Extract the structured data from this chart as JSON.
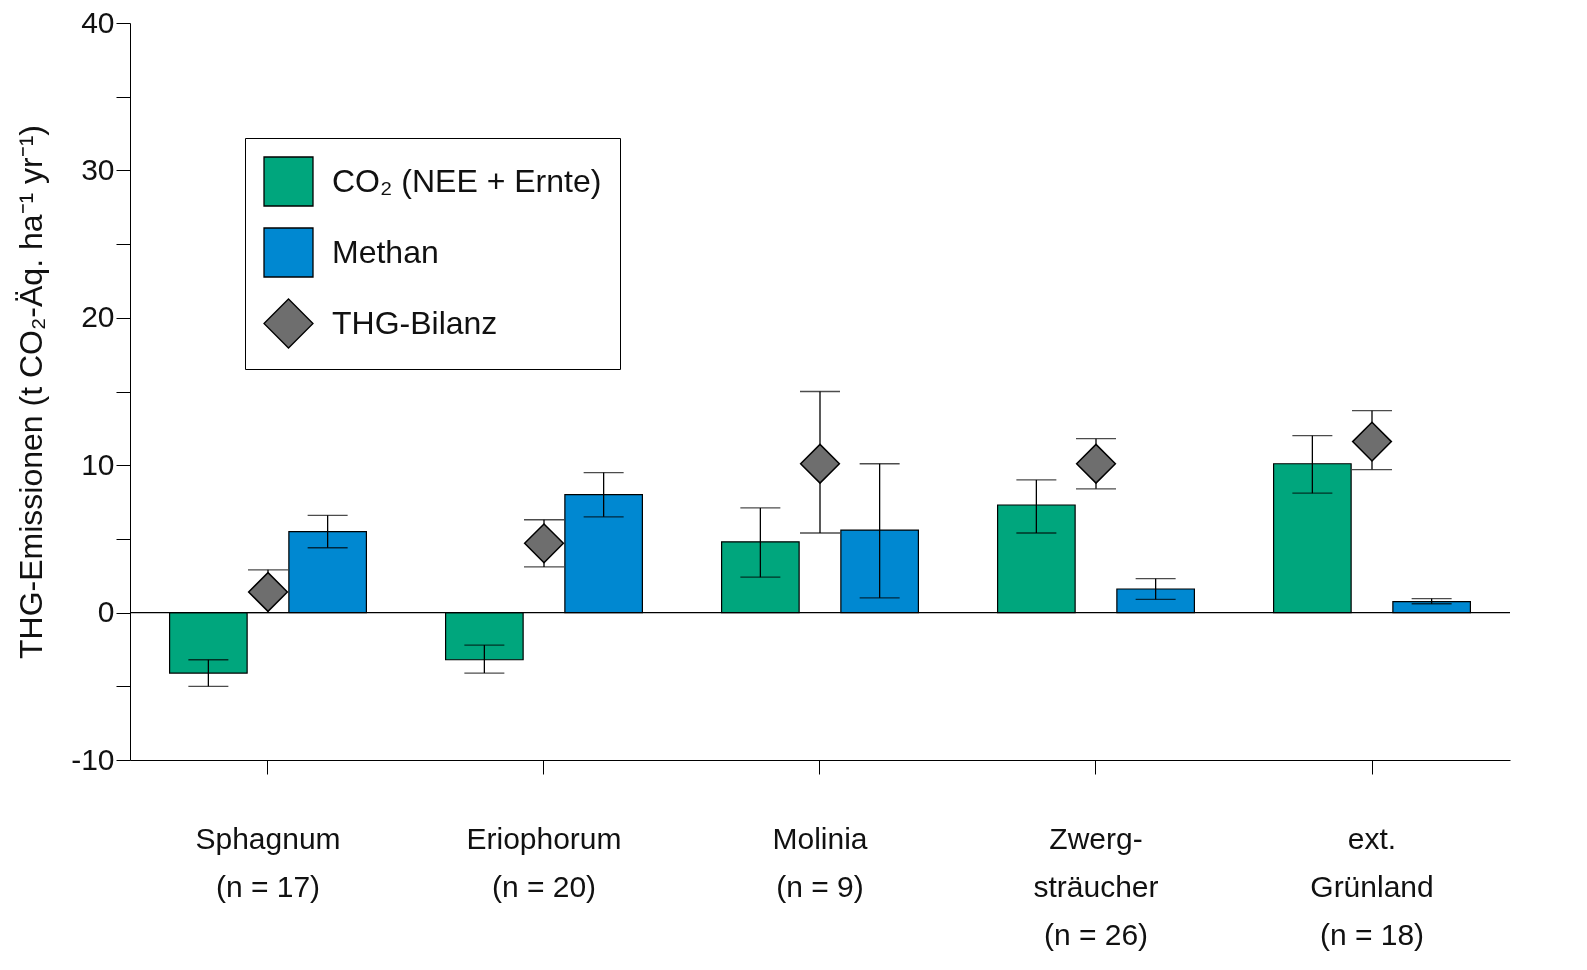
{
  "chart_data": {
    "type": "bar",
    "ylabel": "THG-Emissionen (t CO₂-Äq. ha⁻¹ yr⁻¹)",
    "categories": [
      "Sphagnum\n(n = 17)",
      "Eriophorum\n(n = 20)",
      "Molinia\n(n = 9)",
      "Zwerg-\nsträucher\n(n = 26)",
      "ext.\nGrünland\n(n = 18)"
    ],
    "series": [
      {
        "name": "CO₂ (NEE + Ernte)",
        "color": "#00a67d",
        "values": [
          -4.1,
          -3.2,
          4.8,
          7.3,
          10.1
        ],
        "errors": [
          [
            -5.0,
            -3.2
          ],
          [
            -4.1,
            -2.2
          ],
          [
            2.4,
            7.1
          ],
          [
            5.4,
            9.0
          ],
          [
            8.1,
            12.0
          ]
        ]
      },
      {
        "name": "Methan",
        "color": "#0088d1",
        "values": [
          5.5,
          8.0,
          5.6,
          1.6,
          0.75
        ],
        "errors": [
          [
            4.4,
            6.6
          ],
          [
            6.5,
            9.5
          ],
          [
            1.0,
            10.1
          ],
          [
            0.9,
            2.3
          ],
          [
            0.6,
            0.95
          ]
        ]
      },
      {
        "name": "THG-Bilanz",
        "type": "scatter",
        "color": "#6e6e6e",
        "marker": "diamond",
        "x": [
          "Sphagnum\n(n = 17)",
          "Eriophorum\n(n = 20)",
          "Molinia\n(n = 9)",
          "Zwerg-\nsträucher\n(n = 26)",
          "ext.\nGrünland\n(n = 18)"
        ],
        "values": [
          1.4,
          4.7,
          10.1,
          10.1,
          11.6
        ],
        "errors": [
          [
            0.0,
            2.9
          ],
          [
            3.1,
            6.3
          ],
          [
            5.4,
            15.0
          ],
          [
            8.4,
            11.8
          ],
          [
            9.7,
            13.7
          ]
        ]
      }
    ],
    "ylim": [
      -10,
      40
    ],
    "yticks": [
      -10,
      {
        "value": -5,
        "label": null
      },
      0,
      {
        "value": 5,
        "label": null
      },
      10,
      {
        "value": 15,
        "label": null
      },
      20,
      {
        "value": 25,
        "label": null
      },
      30,
      {
        "value": 35,
        "label": null
      },
      40
    ],
    "ref_lines": [
      {
        "axis": "y",
        "value": 0
      }
    ],
    "grid": false,
    "legend": "top left"
  }
}
